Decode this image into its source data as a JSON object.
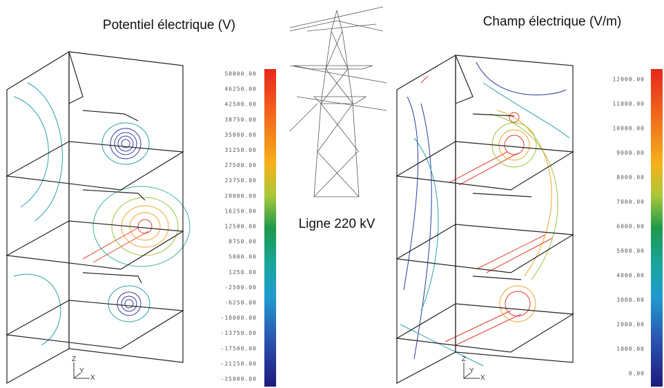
{
  "left": {
    "title": "Potentiel électrique (V)",
    "colorbar": [
      "50000.00",
      "46250.00",
      "42500.00",
      "38750.00",
      "35000.00",
      "31250.00",
      "27500.00",
      "23750.00",
      "20000.00",
      "16250.00",
      "12500.00",
      "8750.00",
      "5000.00",
      "1250.00",
      "-2500.00",
      "-6250.00",
      "-10000.00",
      "-13750.00",
      "-17500.00",
      "-21250.00",
      "-25000.00"
    ]
  },
  "center": {
    "label": "Ligne 220 kV"
  },
  "right": {
    "title": "Champ électrique (V/m)",
    "colorbar": [
      "12000.00",
      "11000.00",
      "10000.00",
      "9000.00",
      "8000.00",
      "7000.00",
      "6000.00",
      "5000.00",
      "4000.00",
      "3000.00",
      "2000.00",
      "1000.00",
      "0.00"
    ]
  },
  "axes": {
    "z": "Z",
    "y": "Y",
    "x": "X"
  }
}
